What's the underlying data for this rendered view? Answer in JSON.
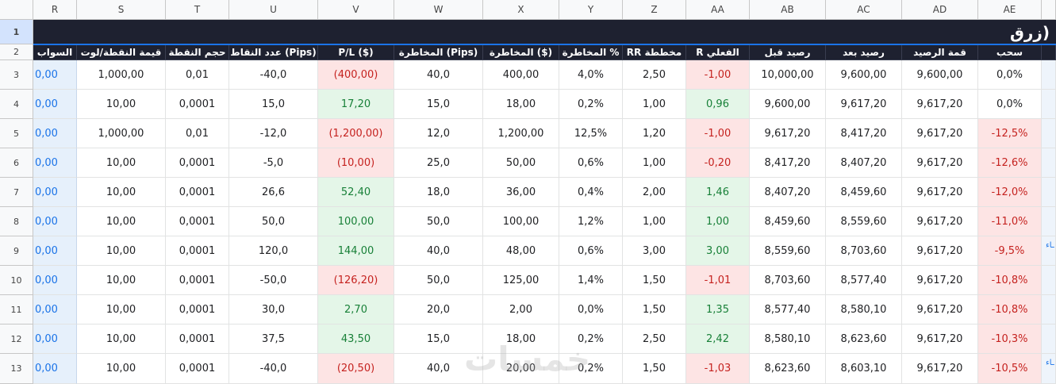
{
  "columns": [
    "R",
    "S",
    "T",
    "U",
    "V",
    "W",
    "X",
    "Y",
    "Z",
    "AA",
    "AB",
    "AC",
    "AD",
    "AE"
  ],
  "row_numbers": [
    "1",
    "2",
    "3",
    "4",
    "5",
    "6",
    "7",
    "8",
    "9",
    "10",
    "11",
    "12",
    "13"
  ],
  "title": "زرق)",
  "headers": [
    "السواب",
    "قيمة النقطة/لوت",
    "حجم النقطة",
    "عدد النقاط (Pips)",
    "P/L ($)",
    "المخاطرة (Pips)",
    "المخاطرة ($)",
    "المخاطرة %",
    "RR مخططة",
    "R الفعلي",
    "رصيد قبل",
    "رصيد بعد",
    "قمة الرصيد",
    "سحب"
  ],
  "rows": [
    {
      "R": "0,00",
      "S": "1,000,00",
      "T": "0,01",
      "U": "-40,0",
      "V": "(400,00)",
      "W": "40,0",
      "X": "400,00",
      "Y": "4,0%",
      "Z": "2,50",
      "AA": "-1,00",
      "AB": "10,000,00",
      "AC": "9,600,00",
      "AD": "9,600,00",
      "AE": "0,0%"
    },
    {
      "R": "0,00",
      "S": "10,00",
      "T": "0,0001",
      "U": "15,0",
      "V": "17,20",
      "W": "15,0",
      "X": "18,00",
      "Y": "0,2%",
      "Z": "1,00",
      "AA": "0,96",
      "AB": "9,600,00",
      "AC": "9,617,20",
      "AD": "9,617,20",
      "AE": "0,0%"
    },
    {
      "R": "0,00",
      "S": "1,000,00",
      "T": "0,01",
      "U": "-12,0",
      "V": "(1,200,00)",
      "W": "12,0",
      "X": "1,200,00",
      "Y": "12,5%",
      "Z": "1,20",
      "AA": "-1,00",
      "AB": "9,617,20",
      "AC": "8,417,20",
      "AD": "9,617,20",
      "AE": "-12,5%"
    },
    {
      "R": "0,00",
      "S": "10,00",
      "T": "0,0001",
      "U": "-5,0",
      "V": "(10,00)",
      "W": "25,0",
      "X": "50,00",
      "Y": "0,6%",
      "Z": "1,00",
      "AA": "-0,20",
      "AB": "8,417,20",
      "AC": "8,407,20",
      "AD": "9,617,20",
      "AE": "-12,6%"
    },
    {
      "R": "0,00",
      "S": "10,00",
      "T": "0,0001",
      "U": "26,6",
      "V": "52,40",
      "W": "18,0",
      "X": "36,00",
      "Y": "0,4%",
      "Z": "2,00",
      "AA": "1,46",
      "AB": "8,407,20",
      "AC": "8,459,60",
      "AD": "9,617,20",
      "AE": "-12,0%"
    },
    {
      "R": "0,00",
      "S": "10,00",
      "T": "0,0001",
      "U": "50,0",
      "V": "100,00",
      "W": "50,0",
      "X": "100,00",
      "Y": "1,2%",
      "Z": "1,00",
      "AA": "1,00",
      "AB": "8,459,60",
      "AC": "8,559,60",
      "AD": "9,617,20",
      "AE": "-11,0%"
    },
    {
      "R": "0,00",
      "S": "10,00",
      "T": "0,0001",
      "U": "120,0",
      "V": "144,00",
      "W": "40,0",
      "X": "48,00",
      "Y": "0,6%",
      "Z": "3,00",
      "AA": "3,00",
      "AB": "8,559,60",
      "AC": "8,703,60",
      "AD": "9,617,20",
      "AE": "-9,5%"
    },
    {
      "R": "0,00",
      "S": "10,00",
      "T": "0,0001",
      "U": "-50,0",
      "V": "(126,20)",
      "W": "50,0",
      "X": "125,00",
      "Y": "1,4%",
      "Z": "1,50",
      "AA": "-1,01",
      "AB": "8,703,60",
      "AC": "8,577,40",
      "AD": "9,617,20",
      "AE": "-10,8%"
    },
    {
      "R": "0,00",
      "S": "10,00",
      "T": "0,0001",
      "U": "30,0",
      "V": "2,70",
      "W": "20,0",
      "X": "2,00",
      "Y": "0,0%",
      "Z": "1,50",
      "AA": "1,35",
      "AB": "8,577,40",
      "AC": "8,580,10",
      "AD": "9,617,20",
      "AE": "-10,8%"
    },
    {
      "R": "0,00",
      "S": "10,00",
      "T": "0,0001",
      "U": "37,5",
      "V": "43,50",
      "W": "15,0",
      "X": "18,00",
      "Y": "0,2%",
      "Z": "2,50",
      "AA": "2,42",
      "AB": "8,580,10",
      "AC": "8,623,60",
      "AD": "9,617,20",
      "AE": "-10,3%"
    },
    {
      "R": "0,00",
      "S": "10,00",
      "T": "0,0001",
      "U": "-40,0",
      "V": "(20,50)",
      "W": "40,0",
      "X": "20,00",
      "Y": "0,2%",
      "Z": "1,50",
      "AA": "-1,03",
      "AB": "8,623,60",
      "AC": "8,603,10",
      "AD": "9,617,20",
      "AE": "-10,5%"
    }
  ],
  "watermark": "خمسات",
  "edge_notes": [
    "ـاء",
    "ـاء"
  ],
  "colors": {
    "negative_bg": "#fde4e4",
    "positive_bg": "#e4f6e8",
    "header_bg": "#1e2130",
    "link_blue": "#1a73e8"
  }
}
